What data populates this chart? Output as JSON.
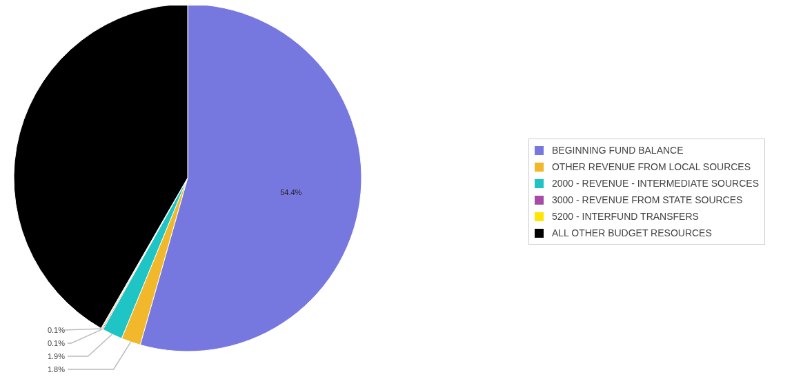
{
  "chart_data": {
    "type": "pie",
    "categories": [
      "BEGINNING FUND BALANCE",
      "OTHER REVENUE FROM LOCAL SOURCES",
      "2000 - REVENUE - INTERMEDIATE SOURCES",
      "3000 - REVENUE FROM STATE SOURCES",
      "5200 - INTERFUND TRANSFERS",
      "ALL OTHER BUDGET RESOURCES"
    ],
    "values": [
      54.4,
      1.8,
      1.9,
      0.1,
      0.1,
      41.7
    ],
    "colors": [
      "#7777e0",
      "#f0b82a",
      "#1fc4c4",
      "#a64ca6",
      "#ffe600",
      "#000000"
    ],
    "value_labels": [
      "54.4%",
      "1.8%",
      "1.9%",
      "0.1%",
      "0.1%",
      null
    ],
    "legend": "right"
  }
}
